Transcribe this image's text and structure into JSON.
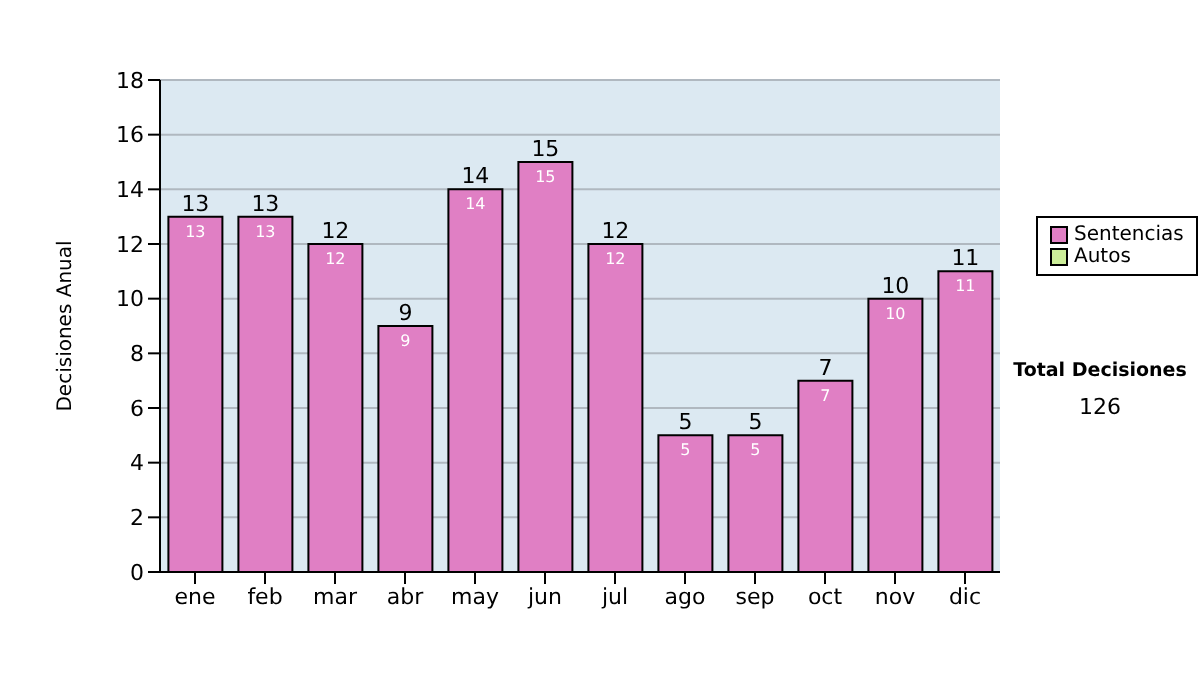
{
  "chart_data": {
    "type": "bar",
    "ylabel": "Decisiones Anual",
    "categories": [
      "ene",
      "feb",
      "mar",
      "abr",
      "may",
      "jun",
      "jul",
      "ago",
      "sep",
      "oct",
      "nov",
      "dic"
    ],
    "series": [
      {
        "name": "Sentencias",
        "color": "#e07fc4",
        "values": [
          13,
          13,
          12,
          9,
          14,
          15,
          12,
          5,
          5,
          7,
          10,
          11
        ],
        "value_labels": [
          "13",
          "13",
          "12",
          "9",
          "14",
          "15",
          "12",
          "5",
          "5",
          "7",
          "10",
          "11"
        ]
      },
      {
        "name": "Autos",
        "color": "#ccee99",
        "values": [
          0,
          0,
          0,
          0,
          0,
          0,
          0,
          0,
          0,
          0,
          0,
          0
        ]
      }
    ],
    "stacked": true,
    "totals": [
      "13",
      "13",
      "12",
      "9",
      "14",
      "15",
      "12",
      "5",
      "5",
      "7",
      "10",
      "11"
    ],
    "ylim": [
      0,
      18
    ],
    "yticks": [
      0,
      2,
      4,
      6,
      8,
      10,
      12,
      14,
      16,
      18
    ],
    "grid": "y",
    "legend": "right",
    "annotations": [
      "Total Decisiones",
      "126"
    ]
  }
}
